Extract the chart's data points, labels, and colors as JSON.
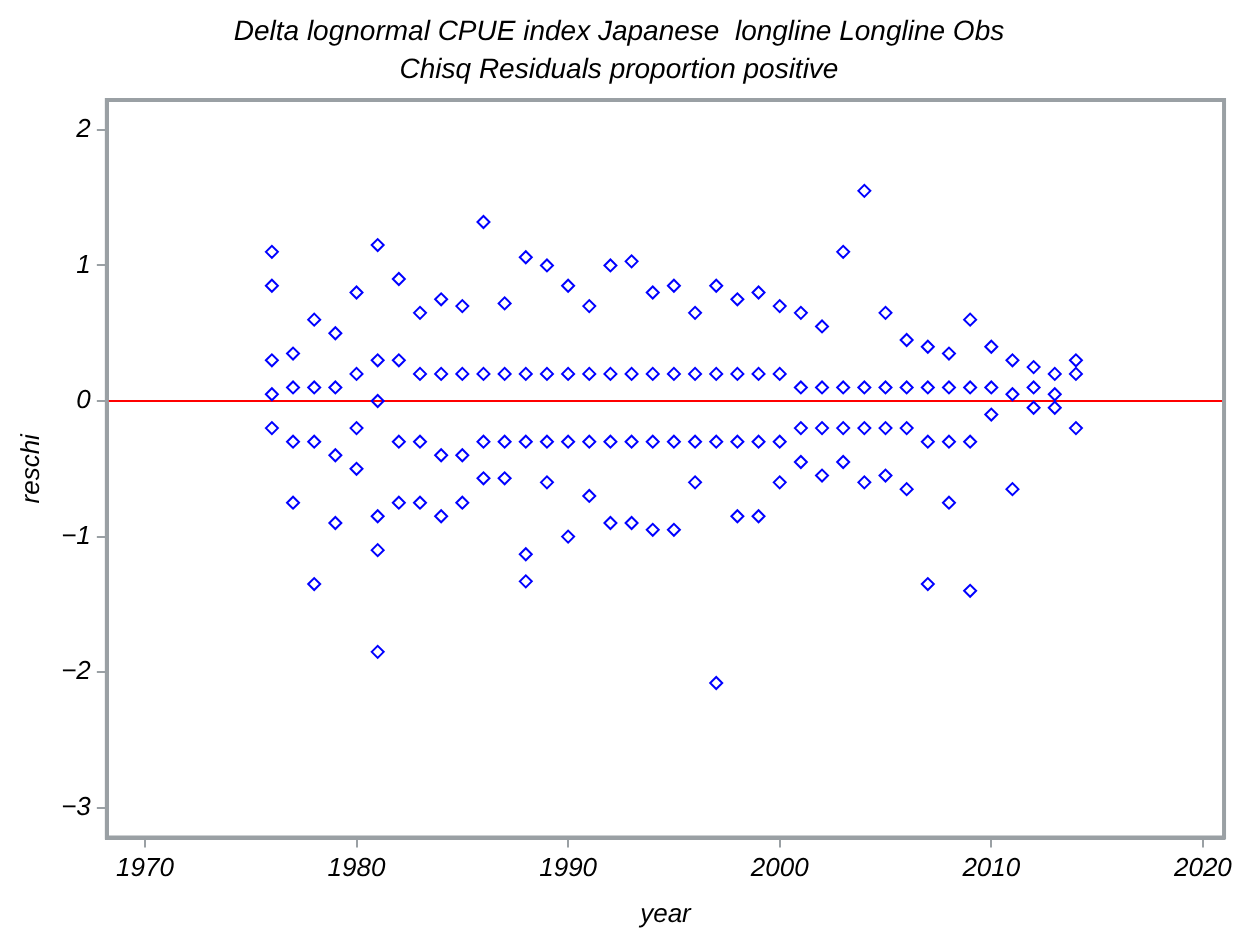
{
  "chart_data": {
    "type": "scatter",
    "title": "Delta lognormal CPUE index Japanese  longline Longline Obs",
    "subtitle": "Chisq Residuals proportion positive",
    "xlabel": "year",
    "ylabel": "reschi",
    "series": [
      {
        "color": "#0000ff",
        "x": [
          1976,
          1976,
          1976,
          1976,
          1976,
          1977,
          1977,
          1977,
          1977,
          1978,
          1978,
          1978,
          1978,
          1979,
          1979,
          1979,
          1979,
          1980,
          1980,
          1980,
          1980,
          1981,
          1981,
          1981,
          1981,
          1981,
          1981,
          1982,
          1982,
          1982,
          1982,
          1983,
          1983,
          1983,
          1983,
          1984,
          1984,
          1984,
          1984,
          1985,
          1985,
          1985,
          1985,
          1986,
          1986,
          1986,
          1986,
          1987,
          1987,
          1987,
          1987,
          1988,
          1988,
          1988,
          1988,
          1988,
          1989,
          1989,
          1989,
          1989,
          1990,
          1990,
          1990,
          1990,
          1991,
          1991,
          1991,
          1991,
          1992,
          1992,
          1992,
          1992,
          1993,
          1993,
          1993,
          1993,
          1994,
          1994,
          1994,
          1994,
          1995,
          1995,
          1995,
          1995,
          1996,
          1996,
          1996,
          1996,
          1997,
          1997,
          1997,
          1997,
          1998,
          1998,
          1998,
          1998,
          1999,
          1999,
          1999,
          1999,
          2000,
          2000,
          2000,
          2000,
          2001,
          2001,
          2001,
          2001,
          2002,
          2002,
          2002,
          2002,
          2003,
          2003,
          2003,
          2003,
          2004,
          2004,
          2004,
          2004,
          2005,
          2005,
          2005,
          2005,
          2006,
          2006,
          2006,
          2006,
          2007,
          2007,
          2007,
          2007,
          2008,
          2008,
          2008,
          2008,
          2009,
          2009,
          2009,
          2009,
          2010,
          2010,
          2010,
          2011,
          2011,
          2011,
          2012,
          2012,
          2012,
          2013,
          2013,
          2013,
          2014,
          2014,
          2014
        ],
        "values": [
          1.1,
          0.85,
          0.3,
          0.05,
          -0.2,
          0.35,
          0.1,
          -0.3,
          -0.75,
          0.6,
          0.1,
          -0.3,
          -1.35,
          0.5,
          0.1,
          -0.4,
          -0.9,
          0.8,
          0.2,
          -0.2,
          -0.5,
          1.15,
          0.3,
          0,
          -0.85,
          -1.1,
          -1.85,
          0.9,
          0.3,
          -0.3,
          -0.75,
          0.65,
          0.2,
          -0.3,
          -0.75,
          0.75,
          0.2,
          -0.4,
          -0.85,
          0.7,
          0.2,
          -0.4,
          -0.75,
          1.32,
          0.2,
          -0.3,
          -0.57,
          0.72,
          0.2,
          -0.3,
          -0.57,
          1.06,
          0.2,
          -0.3,
          -1.13,
          -1.33,
          1.0,
          0.2,
          -0.3,
          -0.6,
          0.85,
          0.2,
          -0.3,
          -1.0,
          0.7,
          0.2,
          -0.3,
          -0.7,
          1.0,
          0.2,
          -0.3,
          -0.9,
          1.03,
          0.2,
          -0.3,
          -0.9,
          0.8,
          0.2,
          -0.3,
          -0.95,
          0.85,
          0.2,
          -0.3,
          -0.95,
          0.65,
          0.2,
          -0.3,
          -0.6,
          0.85,
          0.2,
          -0.3,
          -2.08,
          0.75,
          0.2,
          -0.3,
          -0.85,
          0.8,
          0.2,
          -0.3,
          -0.85,
          0.7,
          0.2,
          -0.3,
          -0.6,
          0.65,
          0.1,
          -0.2,
          -0.45,
          0.55,
          0.1,
          -0.2,
          -0.55,
          1.1,
          0.1,
          -0.2,
          -0.45,
          1.55,
          0.1,
          -0.2,
          -0.6,
          0.65,
          0.1,
          -0.2,
          -0.55,
          0.45,
          0.1,
          -0.2,
          -0.65,
          0.4,
          0.1,
          -0.3,
          -1.35,
          0.35,
          0.1,
          -0.3,
          -0.75,
          0.6,
          0.1,
          -0.3,
          -1.4,
          0.4,
          0.1,
          -0.1,
          0.3,
          0.05,
          -0.65,
          0.25,
          0.1,
          -0.05,
          0.2,
          0.05,
          -0.05,
          0.3,
          0.2,
          -0.2
        ]
      }
    ],
    "marker": "diamond",
    "grid": false,
    "legend": false,
    "xlim": [
      1968.2,
      2021
    ],
    "xticks": [
      1970,
      1980,
      1990,
      2000,
      2010,
      2020
    ],
    "ylim": [
      -3.22,
      2.22
    ],
    "yticks": [
      {
        "value": -3,
        "label": "−3"
      },
      {
        "value": -2,
        "label": "−2"
      },
      {
        "value": -1,
        "label": "−1"
      },
      0,
      1,
      2
    ],
    "ref_lines": [
      {
        "axis": "y",
        "value": 0,
        "color": "#ff0000"
      }
    ]
  }
}
